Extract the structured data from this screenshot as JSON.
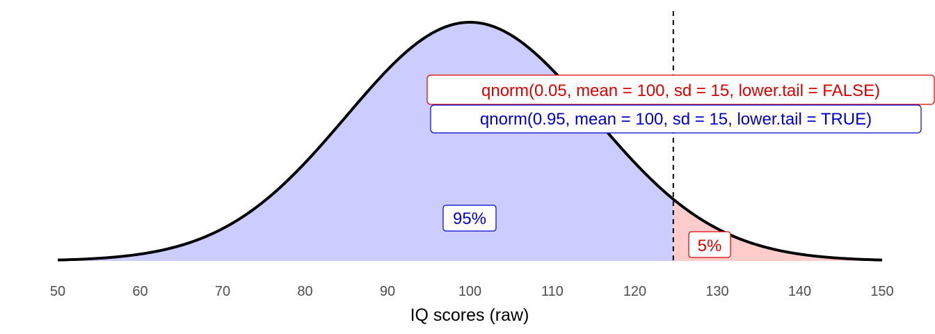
{
  "chart_data": {
    "type": "area",
    "distribution": "normal",
    "mean": 100,
    "sd": 15,
    "cutoff": 124.67,
    "xlim": [
      50,
      150
    ],
    "x_ticks": [
      50,
      60,
      70,
      80,
      90,
      100,
      110,
      120,
      130,
      140,
      150
    ],
    "xlabel": "IQ scores (raw)",
    "grid": false,
    "y_axis_visible": false,
    "regions": [
      {
        "label": "95%",
        "from": 50,
        "to": 124.67,
        "fill": "#ccccff",
        "text_color": "#0000cc"
      },
      {
        "label": "5%",
        "from": 124.67,
        "to": 150,
        "fill": "#ffcccc",
        "text_color": "#dd0000"
      }
    ],
    "annotations": [
      {
        "text": "qnorm(0.05, mean = 100, sd = 15, lower.tail = FALSE)",
        "color": "#dd0000"
      },
      {
        "text": "qnorm(0.95, mean = 100, sd = 15, lower.tail = TRUE)",
        "color": "#0000cc"
      }
    ],
    "line_color": "#000000"
  }
}
